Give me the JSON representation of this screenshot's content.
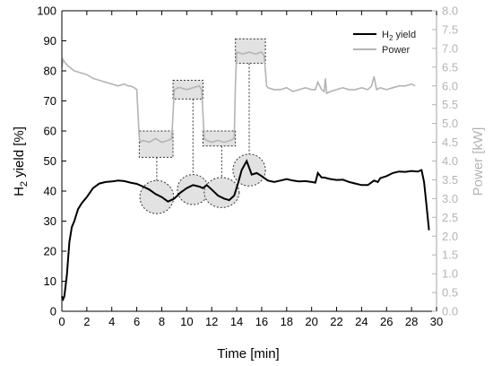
{
  "chart_data": {
    "type": "line",
    "xlabel": "Time [min]",
    "ylabel_left": "H2 yield [%]",
    "ylabel_right": "Power [kW]",
    "xlim": [
      0,
      30
    ],
    "ylim_left": [
      0,
      100
    ],
    "ylim_right": [
      0,
      8
    ],
    "xticks": [
      0,
      2,
      4,
      6,
      8,
      10,
      12,
      14,
      16,
      18,
      20,
      22,
      24,
      26,
      28,
      30
    ],
    "yticks_left": [
      0,
      10,
      20,
      30,
      40,
      50,
      60,
      70,
      80,
      90,
      100
    ],
    "yticks_right": [
      "0.0",
      "0.5",
      "1.0",
      "1.5",
      "2.0",
      "2.5",
      "3.0",
      "3.5",
      "4.0",
      "4.5",
      "5.0",
      "5.5",
      "6.0",
      "6.5",
      "7.0",
      "7.5",
      "8.0"
    ],
    "grid": false,
    "legend_position": "top-right",
    "colors": {
      "h2": "#000000",
      "power": "#b4b4b4",
      "highlight": "#e2e2e2"
    },
    "series": [
      {
        "name": "H2 yield",
        "axis": "left",
        "x": [
          0,
          0.1,
          0.2,
          0.4,
          0.6,
          0.8,
          1.0,
          1.3,
          1.6,
          2.0,
          2.5,
          3.0,
          3.5,
          4.0,
          4.5,
          5.0,
          5.5,
          6.0,
          6.5,
          7.0,
          7.5,
          8.0,
          8.5,
          9.0,
          9.5,
          10.0,
          10.5,
          11.0,
          11.3,
          11.6,
          12.0,
          12.5,
          13.0,
          13.4,
          13.8,
          14.1,
          14.4,
          14.8,
          15.2,
          15.6,
          16.0,
          16.5,
          17.0,
          17.5,
          18.0,
          18.5,
          19.0,
          19.5,
          20.0,
          20.3,
          20.5,
          20.8,
          21.0,
          21.5,
          22.0,
          22.5,
          23.0,
          23.5,
          24.0,
          24.5,
          25.0,
          25.3,
          25.5,
          26.0,
          26.5,
          27.0,
          27.5,
          28.0,
          28.5,
          28.8,
          29.0,
          29.2,
          29.4
        ],
        "y": [
          5,
          4,
          5,
          12,
          23,
          28,
          30,
          34,
          36,
          38,
          41,
          42.5,
          43,
          43.2,
          43.5,
          43.3,
          42.8,
          42.4,
          41.5,
          40.5,
          39,
          38,
          36.5,
          37.5,
          39.5,
          41,
          42,
          41.5,
          41,
          42,
          40.5,
          38.5,
          37.5,
          37,
          38.5,
          42.5,
          47,
          50,
          45.5,
          46,
          45,
          43.5,
          43,
          43.5,
          44,
          43.5,
          43.2,
          43.3,
          43,
          42.8,
          46,
          44.5,
          44.5,
          44,
          43.7,
          43.8,
          43,
          42.5,
          42,
          42,
          43.5,
          43,
          44.3,
          45,
          46,
          46.5,
          46.4,
          46.7,
          46.5,
          47,
          43,
          35,
          27
        ]
      },
      {
        "name": "Power",
        "axis": "right",
        "x": [
          0,
          0.1,
          0.3,
          0.6,
          1.0,
          1.5,
          2.0,
          2.5,
          3.0,
          3.5,
          4.0,
          4.5,
          5.0,
          5.3,
          5.5,
          5.8,
          6.0,
          6.2,
          6.3,
          6.5,
          7.0,
          7.5,
          8.0,
          8.5,
          8.8,
          9.0,
          9.3,
          9.5,
          10.0,
          10.5,
          11.0,
          11.2,
          11.4,
          11.6,
          12.0,
          12.5,
          13.0,
          13.5,
          13.8,
          13.9,
          14.0,
          14.5,
          15.0,
          15.5,
          16.0,
          16.2,
          16.4,
          16.5,
          17.0,
          17.5,
          18.0,
          18.5,
          19.0,
          19.5,
          20.0,
          20.3,
          20.5,
          20.8,
          21.0,
          21.1,
          21.2,
          21.5,
          22.0,
          22.5,
          23.0,
          23.5,
          24.0,
          24.5,
          24.8,
          25.0,
          25.2,
          25.5,
          26.0,
          26.5,
          27.0,
          27.5,
          28.0,
          28.3
        ],
        "y": [
          6.5,
          6.7,
          6.6,
          6.5,
          6.4,
          6.35,
          6.3,
          6.2,
          6.15,
          6.1,
          6.05,
          6.0,
          6.05,
          6.0,
          6.0,
          5.95,
          5.9,
          4.6,
          4.5,
          4.55,
          4.5,
          4.6,
          4.5,
          4.55,
          4.6,
          5.9,
          5.95,
          5.95,
          5.9,
          5.95,
          6.0,
          5.9,
          4.6,
          4.55,
          4.5,
          4.55,
          4.5,
          4.55,
          4.6,
          6.1,
          6.9,
          6.85,
          6.9,
          6.85,
          6.9,
          6.8,
          6.0,
          5.95,
          5.9,
          5.9,
          5.95,
          5.85,
          5.9,
          5.95,
          5.9,
          5.9,
          6.1,
          5.9,
          5.85,
          6.2,
          5.8,
          5.85,
          5.9,
          5.95,
          5.9,
          5.9,
          5.95,
          5.9,
          6.0,
          6.25,
          5.9,
          5.95,
          5.9,
          5.95,
          6.0,
          6.0,
          6.05,
          6.0
        ]
      }
    ],
    "annotations": {
      "power_boxes": [
        {
          "x0": 6.2,
          "x1": 8.9,
          "y0": 4.1,
          "y1": 4.8
        },
        {
          "x0": 8.9,
          "x1": 11.3,
          "y0": 5.65,
          "y1": 6.15
        },
        {
          "x0": 11.3,
          "x1": 13.9,
          "y0": 4.4,
          "y1": 4.8
        },
        {
          "x0": 13.9,
          "x1": 16.3,
          "y0": 6.6,
          "y1": 7.25
        }
      ],
      "h2_ellipses": [
        {
          "cx": 7.6,
          "cy": 38,
          "rx": 1.35,
          "ry": 5.5
        },
        {
          "cx": 10.5,
          "cy": 40.5,
          "rx": 1.25,
          "ry": 5
        },
        {
          "cx": 12.8,
          "cy": 39.5,
          "rx": 1.4,
          "ry": 5
        },
        {
          "cx": 15.0,
          "cy": 47,
          "rx": 1.3,
          "ry": 5.3
        }
      ]
    }
  }
}
